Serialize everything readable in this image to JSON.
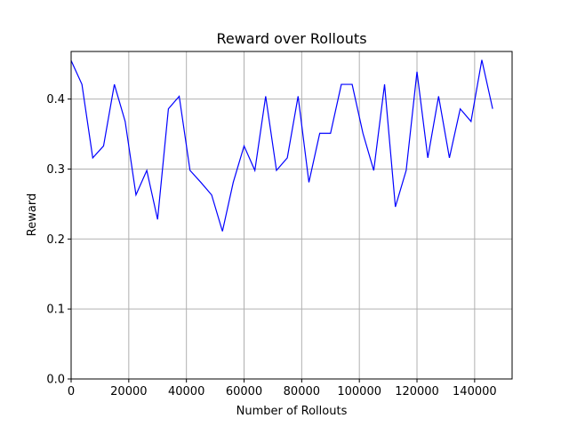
{
  "chart_data": {
    "type": "line",
    "title": "Reward over Rollouts",
    "xlabel": "Number of Rollouts",
    "ylabel": "Reward",
    "xlim": [
      0,
      153000
    ],
    "ylim": [
      0,
      0.468
    ],
    "grid": true,
    "line_color": "#0000ff",
    "x_ticks": [
      0,
      20000,
      40000,
      60000,
      80000,
      100000,
      120000,
      140000
    ],
    "y_ticks": [
      0.0,
      0.1,
      0.2,
      0.3,
      0.4
    ],
    "x_tick_labels": [
      "0",
      "20000",
      "40000",
      "60000",
      "80000",
      "100000",
      "120000",
      "140000"
    ],
    "y_tick_labels": [
      "0.0",
      "0.1",
      "0.2",
      "0.3",
      "0.4"
    ],
    "series": [
      {
        "x": [
          0,
          3750,
          7500,
          11250,
          15000,
          18750,
          22500,
          26250,
          30000,
          33750,
          37500,
          41250,
          45000,
          48750,
          52500,
          56250,
          60000,
          63750,
          67500,
          71250,
          75000,
          78750,
          82500,
          86250,
          90000,
          93750,
          97500,
          101250,
          105000,
          108750,
          112500,
          116250,
          120000,
          123750,
          127500,
          131250,
          135000,
          138750,
          142500,
          146250
        ],
        "values": [
          0.455,
          0.421,
          0.316,
          0.333,
          0.421,
          0.368,
          0.263,
          0.298,
          0.228,
          0.386,
          0.404,
          0.298,
          0.281,
          0.263,
          0.211,
          0.281,
          0.333,
          0.298,
          0.404,
          0.298,
          0.316,
          0.404,
          0.281,
          0.351,
          0.351,
          0.421,
          0.421,
          0.351,
          0.298,
          0.421,
          0.246,
          0.298,
          0.439,
          0.316,
          0.404,
          0.316,
          0.386,
          0.368,
          0.456,
          0.386
        ]
      }
    ]
  }
}
